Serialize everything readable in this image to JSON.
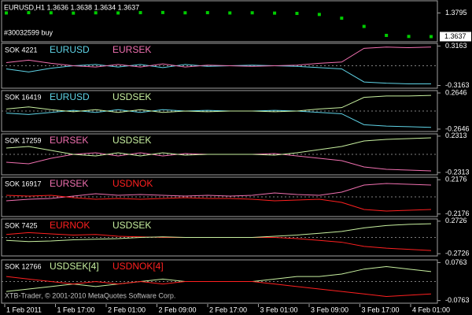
{
  "header": {
    "title": "EURUSD,H1 1.3636 1.3638 1.3634 1.3637",
    "order": "#30032599 buy",
    "price_label": "1.3637",
    "ylim": [
      1.3608,
      1.3871
    ],
    "yticks": [
      1.3795
    ],
    "color": "#00cc00",
    "values": [
      1.3795,
      1.3797,
      1.3796,
      1.3794,
      1.3796,
      1.3795,
      1.3797,
      1.3798,
      1.3796,
      1.3797,
      1.3795,
      1.3796,
      1.3794,
      1.3792,
      1.3785,
      1.376,
      1.3705,
      1.3645,
      1.3638,
      1.3637
    ]
  },
  "panes": [
    {
      "label": "SOK 4221",
      "ylim": [
        -0.36,
        0.36
      ],
      "yticks": [
        0.3163,
        -0.3163
      ],
      "series": [
        {
          "name": "EURUSD",
          "color": "#5fd3e6",
          "values": [
            -0.05,
            -0.1,
            -0.04,
            0,
            0.02,
            -0.02,
            0.02,
            -0.03,
            0.02,
            -0.01,
            0,
            0.01,
            0,
            -0.01,
            -0.03,
            -0.05,
            -0.26,
            -0.28,
            -0.29,
            -0.29
          ]
        },
        {
          "name": "EURSEK",
          "color": "#f070b0",
          "values": [
            0.05,
            0.09,
            0.04,
            0,
            -0.02,
            0.02,
            -0.02,
            0.03,
            -0.02,
            0.01,
            0,
            -0.01,
            0,
            0.01,
            0.04,
            0.06,
            0.28,
            0.3,
            0.29,
            0.3
          ]
        }
      ]
    },
    {
      "label": "SOK 16419",
      "ylim": [
        -0.3,
        0.3
      ],
      "yticks": [
        0.2646,
        -0.2646
      ],
      "series": [
        {
          "name": "EURUSD",
          "color": "#5fd3e6",
          "values": [
            -0.03,
            -0.05,
            -0.02,
            0.01,
            -0.02,
            0.02,
            -0.02,
            0.02,
            0,
            0.01,
            0,
            0,
            0.01,
            0,
            -0.02,
            -0.04,
            -0.2,
            -0.22,
            -0.23,
            -0.24
          ]
        },
        {
          "name": "USDSEK",
          "color": "#c8f0a0",
          "values": [
            0.03,
            0.06,
            0.02,
            -0.01,
            0.02,
            -0.02,
            0.02,
            -0.02,
            0,
            -0.01,
            0,
            0,
            -0.01,
            0,
            0.03,
            0.05,
            0.2,
            0.22,
            0.22,
            0.23
          ]
        }
      ]
    },
    {
      "label": "SOK 17259",
      "ylim": [
        -0.26,
        0.26
      ],
      "yticks": [
        0.2313,
        -0.2313
      ],
      "series": [
        {
          "name": "EURSEK",
          "color": "#f070b0",
          "values": [
            -0.1,
            -0.12,
            -0.05,
            0,
            0.02,
            -0.02,
            0.02,
            -0.02,
            0.01,
            0,
            0,
            0,
            0.01,
            -0.02,
            -0.05,
            -0.08,
            -0.16,
            -0.19,
            -0.2,
            -0.21
          ]
        },
        {
          "name": "USDSEK",
          "color": "#c8f0a0",
          "values": [
            0.08,
            0.1,
            0.05,
            0,
            -0.02,
            0.02,
            -0.02,
            0.02,
            -0.01,
            0,
            0,
            0,
            -0.01,
            0.02,
            0.06,
            0.1,
            0.17,
            0.19,
            0.2,
            0.21
          ]
        }
      ]
    },
    {
      "label": "SOK 16917",
      "ylim": [
        -0.25,
        0.25
      ],
      "yticks": [
        0.2176,
        -0.2176
      ],
      "series": [
        {
          "name": "EURSEK",
          "color": "#f070b0",
          "values": [
            -0.05,
            -0.03,
            -0.02,
            0.01,
            0.04,
            0.02,
            0.03,
            0.02,
            0.01,
            0.02,
            0.01,
            0.02,
            0.05,
            0.03,
            0.02,
            0.06,
            0.15,
            0.17,
            0.16,
            0.15
          ]
        },
        {
          "name": "USDNOK",
          "color": "#ff2020",
          "values": [
            0.02,
            0.01,
            0.02,
            -0.01,
            -0.03,
            -0.02,
            -0.03,
            -0.02,
            -0.01,
            -0.02,
            -0.02,
            -0.03,
            -0.05,
            -0.04,
            -0.03,
            -0.07,
            -0.16,
            -0.18,
            -0.17,
            -0.16
          ]
        }
      ]
    },
    {
      "label": "SOK 7425",
      "ylim": [
        -0.31,
        0.31
      ],
      "yticks": [
        0.2726,
        -0.2726
      ],
      "series": [
        {
          "name": "EURNOK",
          "color": "#ff2020",
          "values": [
            0.05,
            0.08,
            0.06,
            0.04,
            0.05,
            0.02,
            0.01,
            0,
            0,
            0,
            0,
            0,
            0,
            -0.02,
            -0.05,
            -0.08,
            -0.15,
            -0.18,
            -0.2,
            -0.22
          ]
        },
        {
          "name": "USDSEK",
          "color": "#c8f0a0",
          "values": [
            -0.05,
            -0.07,
            -0.06,
            -0.04,
            -0.03,
            -0.02,
            0,
            0.01,
            0,
            0,
            0,
            0,
            0.02,
            0.04,
            0.07,
            0.1,
            0.16,
            0.2,
            0.22,
            0.23
          ]
        }
      ]
    },
    {
      "label": "SOK 12766",
      "ylim": [
        -0.087,
        0.087
      ],
      "yticks": [
        0.0763,
        -0.0763
      ],
      "series": [
        {
          "name": "USDSEK[4]",
          "color": "#c8f0a0",
          "values": [
            -0.04,
            -0.03,
            -0.02,
            -0.01,
            -0.02,
            -0.01,
            0,
            0.01,
            0,
            0,
            0,
            0,
            0.01,
            0.02,
            0.02,
            0.03,
            0.05,
            0.06,
            0.05,
            0.04
          ]
        },
        {
          "name": "USDNOK[4]",
          "color": "#ff2020",
          "values": [
            0.02,
            0.01,
            0,
            -0.01,
            0,
            -0.01,
            0,
            -0.01,
            0,
            0,
            0,
            0,
            -0.01,
            -0.02,
            -0.03,
            -0.04,
            -0.05,
            -0.06,
            -0.055,
            -0.05
          ]
        }
      ]
    }
  ],
  "footer": {
    "copyright": "XTB-Trader, © 2001-2010 MetaQuotes Software Corp.",
    "x_labels": [
      "1 Feb 2011",
      "1 Feb 17:00",
      "2 Feb 01:00",
      "2 Feb 09:00",
      "2 Feb 17:00",
      "3 Feb 01:00",
      "3 Feb 09:00",
      "3 Feb 17:00",
      "4 Feb 01:00"
    ]
  }
}
